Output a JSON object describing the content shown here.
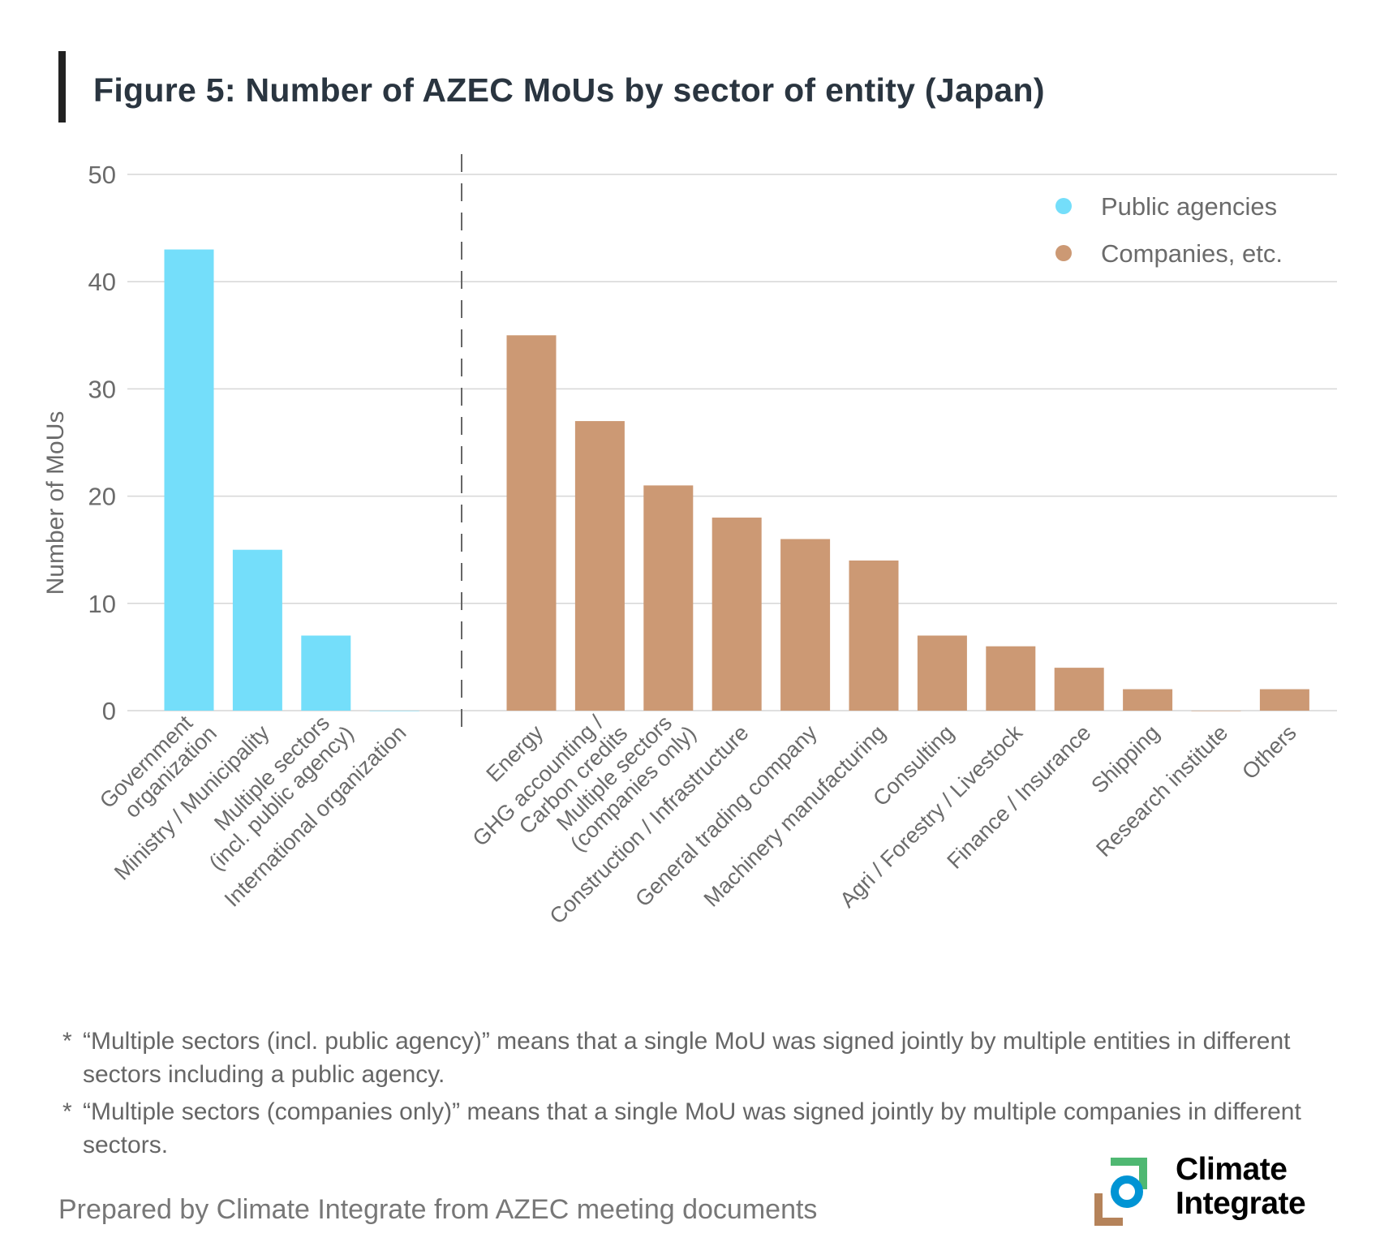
{
  "title": "Figure 5: Number of AZEC MoUs by sector of entity (Japan)",
  "chart_data": {
    "type": "bar",
    "title": "Figure 5: Number of AZEC MoUs by sector of entity (Japan)",
    "ylabel": "Number of MoUs",
    "xlabel": "",
    "ylim": [
      0,
      50
    ],
    "yticks": [
      "0",
      "10",
      "20",
      "30",
      "40",
      "50"
    ],
    "grid": true,
    "legend_position": "top-right",
    "divider": "dashed vertical line between public agencies and companies",
    "series": [
      {
        "name": "Public agencies",
        "color": "#74DEFA",
        "categories": [
          [
            "Government",
            "organization"
          ],
          [
            "Ministry / Municipality"
          ],
          [
            "Multiple sectors",
            "(incl. public agency)"
          ],
          [
            "International organization"
          ]
        ],
        "values": [
          43,
          15,
          7,
          0
        ]
      },
      {
        "name": "Companies, etc.",
        "color": "#CC9974",
        "categories": [
          [
            "Energy"
          ],
          [
            "GHG accounting /",
            "Carbon credits"
          ],
          [
            "Multiple sectors",
            "(companies only)"
          ],
          [
            "Construction / Infrastructure"
          ],
          [
            "General trading company"
          ],
          [
            "Machinery manufacturing"
          ],
          [
            "Consulting"
          ],
          [
            "Agri / Forestry / Livestock"
          ],
          [
            "Finance / Insurance"
          ],
          [
            "Shipping"
          ],
          [
            "Research institute"
          ],
          [
            "Others"
          ]
        ],
        "values": [
          35,
          27,
          21,
          18,
          16,
          14,
          7,
          6,
          4,
          2,
          0,
          2
        ]
      }
    ]
  },
  "footnotes": [
    {
      "mark": "*",
      "text": "“Multiple sectors (incl. public agency)” means that a single MoU was signed jointly by multiple entities in different sectors including a public agency."
    },
    {
      "mark": "*",
      "text": "“Multiple sectors (companies only)” means that a single MoU was signed jointly by multiple companies in different sectors."
    }
  ],
  "source": "Prepared by Climate Integrate from AZEC meeting documents",
  "logo": {
    "line1": "Climate",
    "line2": "Integrate"
  }
}
